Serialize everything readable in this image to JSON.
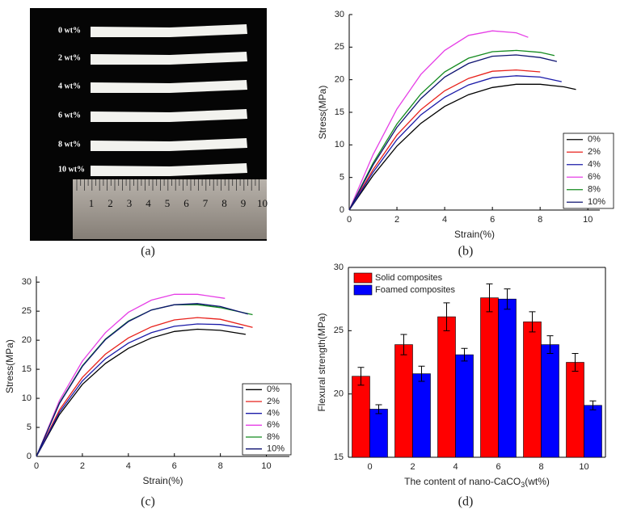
{
  "photo": {
    "labels": [
      "0 wt%",
      "2 wt%",
      "4 wt%",
      "6 wt%",
      "8 wt%",
      "10 wt%"
    ],
    "ruler_labels": [
      "1",
      "2",
      "3",
      "4",
      "5",
      "6",
      "7",
      "8",
      "9",
      "10"
    ],
    "panel_label": "(a)"
  },
  "chart_data": [
    {
      "type": "line",
      "panel_label": "(b)",
      "xlabel": "Strain(%)",
      "ylabel": "Stress(MPa)",
      "xlim": [
        0,
        10.5
      ],
      "xticks": [
        0,
        2,
        4,
        6,
        8,
        10
      ],
      "ylim": [
        0,
        30
      ],
      "yticks": [
        0,
        5,
        10,
        15,
        20,
        25,
        30
      ],
      "legend": "bottom-right",
      "box": false,
      "series": [
        {
          "name": "0%",
          "color": "#000000",
          "x": [
            0,
            1,
            2,
            3,
            4,
            5,
            6,
            7,
            8,
            9,
            9.5
          ],
          "values": [
            0,
            5.3,
            9.8,
            13.3,
            15.9,
            17.7,
            18.8,
            19.3,
            19.3,
            18.9,
            18.5
          ]
        },
        {
          "name": "2%",
          "color": "#e8211b",
          "x": [
            0,
            1,
            2,
            3,
            4,
            5,
            6,
            7,
            8
          ],
          "values": [
            0,
            6.2,
            11.5,
            15.4,
            18.3,
            20.2,
            21.3,
            21.5,
            21.2
          ]
        },
        {
          "name": "4%",
          "color": "#1a1aa8",
          "x": [
            0,
            1,
            2,
            3,
            4,
            5,
            6,
            7,
            8,
            8.9
          ],
          "values": [
            0,
            5.8,
            10.8,
            14.6,
            17.3,
            19.2,
            20.3,
            20.6,
            20.4,
            19.7
          ]
        },
        {
          "name": "6%",
          "color": "#e63fe6",
          "x": [
            0,
            1,
            2,
            3,
            4,
            5,
            6,
            7,
            7.5
          ],
          "values": [
            0,
            8.5,
            15.5,
            20.8,
            24.5,
            26.8,
            27.5,
            27.2,
            26.5
          ]
        },
        {
          "name": "8%",
          "color": "#138a1e",
          "x": [
            0,
            1,
            2,
            3,
            4,
            5,
            6,
            7,
            8,
            8.6
          ],
          "values": [
            0,
            7.2,
            13.2,
            17.8,
            21.2,
            23.3,
            24.3,
            24.5,
            24.2,
            23.7
          ]
        },
        {
          "name": "10%",
          "color": "#0d1270",
          "x": [
            0,
            1,
            2,
            3,
            4,
            5,
            6,
            7,
            8,
            8.7
          ],
          "values": [
            0,
            6.9,
            12.7,
            17.1,
            20.4,
            22.5,
            23.6,
            23.8,
            23.4,
            22.8
          ]
        }
      ]
    },
    {
      "type": "line",
      "panel_label": "(c)",
      "xlabel": "Strain(%)",
      "ylabel": "Stress(MPa)",
      "xlim": [
        0,
        11
      ],
      "xticks": [
        0,
        2,
        4,
        6,
        8,
        10
      ],
      "ylim": [
        0,
        31
      ],
      "yticks": [
        0,
        5,
        10,
        15,
        20,
        25,
        30
      ],
      "legend": "bottom-right",
      "box": false,
      "series": [
        {
          "name": "0%",
          "color": "#000000",
          "x": [
            0,
            1,
            2,
            3,
            4,
            5,
            6,
            7,
            8,
            9.1
          ],
          "values": [
            0,
            7.2,
            12.4,
            16,
            18.6,
            20.4,
            21.5,
            21.9,
            21.7,
            21
          ]
        },
        {
          "name": "2%",
          "color": "#e8211b",
          "x": [
            0,
            1,
            2,
            3,
            4,
            5,
            6,
            7,
            8,
            9.4
          ],
          "values": [
            0,
            8,
            13.6,
            17.6,
            20.4,
            22.3,
            23.5,
            23.9,
            23.6,
            22.2
          ]
        },
        {
          "name": "4%",
          "color": "#1a1aa8",
          "x": [
            0,
            1,
            2,
            3,
            4,
            5,
            6,
            7,
            8,
            9
          ],
          "values": [
            0,
            7.6,
            13,
            16.8,
            19.5,
            21.3,
            22.4,
            22.8,
            22.7,
            22.1
          ]
        },
        {
          "name": "6%",
          "color": "#e63fe6",
          "x": [
            0,
            1,
            2,
            3,
            4,
            5,
            6,
            7,
            8.2
          ],
          "values": [
            0,
            9.6,
            16.4,
            21.3,
            24.8,
            26.9,
            27.9,
            27.9,
            27.2
          ]
        },
        {
          "name": "8%",
          "color": "#138a1e",
          "x": [
            0,
            1,
            2,
            3,
            4,
            5,
            6,
            7,
            8,
            9.4
          ],
          "values": [
            0,
            9.2,
            15.6,
            20.2,
            23.3,
            25.2,
            26.1,
            26.1,
            25.6,
            24.4
          ]
        },
        {
          "name": "10%",
          "color": "#0d1270",
          "x": [
            0,
            1,
            2,
            3,
            4,
            5,
            6,
            7,
            8,
            9.2
          ],
          "values": [
            0,
            9.1,
            15.5,
            20.1,
            23.2,
            25.2,
            26.1,
            26.3,
            25.8,
            24.5
          ]
        }
      ]
    },
    {
      "type": "bar",
      "panel_label": "(d)",
      "xlabel": "The content of nano-CaCO",
      "xlabel_sub": "3",
      "xlabel_end": "(wt%)",
      "ylabel": "Flexural strength(MPa)",
      "categories": [
        "0",
        "2",
        "4",
        "6",
        "8",
        "10"
      ],
      "ylim": [
        15,
        30
      ],
      "yticks": [
        15,
        20,
        25,
        30
      ],
      "legend": "top-left",
      "box": true,
      "series": [
        {
          "name": "Solid composites",
          "color": "#ff0000",
          "values": [
            21.4,
            23.9,
            26.1,
            27.6,
            25.7,
            22.5
          ],
          "errors": [
            0.7,
            0.8,
            1.1,
            1.1,
            0.8,
            0.7
          ]
        },
        {
          "name": "Foamed composites",
          "color": "#0000ff",
          "values": [
            18.8,
            21.6,
            23.1,
            27.5,
            23.9,
            19.1
          ],
          "errors": [
            0.35,
            0.6,
            0.5,
            0.8,
            0.7,
            0.35
          ]
        }
      ]
    }
  ]
}
